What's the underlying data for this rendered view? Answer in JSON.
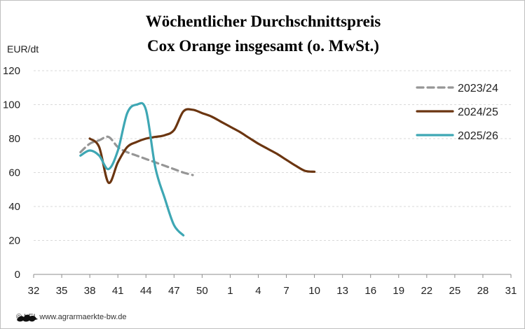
{
  "chart_data": {
    "type": "line",
    "title": "Wöchentlicher Durchschnittspreis",
    "subtitle": "Cox Orange  insgesamt (o. MwSt.)",
    "ylabel": "EUR/dt",
    "ylim": [
      0,
      120
    ],
    "yticks": [
      0,
      20,
      40,
      60,
      80,
      100,
      120
    ],
    "x_ticks": [
      "32",
      "35",
      "38",
      "41",
      "44",
      "47",
      "50",
      "1",
      "4",
      "7",
      "10",
      "13",
      "16",
      "19",
      "22",
      "25",
      "28",
      "31"
    ],
    "grid": true,
    "legend_position": "top-right",
    "series": [
      {
        "name": "2023/24",
        "color": "#969696",
        "style": "dashed",
        "x": [
          "37",
          "38",
          "39",
          "40",
          "41",
          "42",
          "43",
          "44",
          "45",
          "46",
          "47",
          "48",
          "49"
        ],
        "values": [
          72,
          77,
          79,
          81,
          75,
          72,
          70,
          68,
          66,
          64,
          62,
          60,
          58.5
        ]
      },
      {
        "name": "2024/25",
        "color": "#6b3510",
        "style": "solid",
        "x": [
          "38",
          "39",
          "40",
          "41",
          "42",
          "43",
          "44",
          "45",
          "46",
          "47",
          "48",
          "49",
          "50",
          "51",
          "52",
          "1",
          "2",
          "3",
          "4",
          "5",
          "6",
          "7",
          "8",
          "9",
          "10"
        ],
        "values": [
          80,
          75,
          54,
          66,
          75,
          78,
          80,
          81,
          82,
          85,
          96,
          97,
          95,
          93,
          90,
          87,
          84,
          80.5,
          77,
          74,
          71,
          67.5,
          64,
          61,
          60.5
        ]
      },
      {
        "name": "2025/26",
        "color": "#3ea7b4",
        "style": "solid",
        "x": [
          "37",
          "38",
          "39",
          "40",
          "41",
          "42",
          "43",
          "44",
          "45",
          "46",
          "47",
          "48"
        ],
        "values": [
          70,
          73,
          70,
          62,
          73,
          95,
          100,
          97,
          63,
          45,
          29,
          23
        ]
      }
    ]
  },
  "footer": {
    "credit": "© LEL www.agrarmaerkte-bw.de",
    "logo": "baden-wuerttemberg-lion-logo"
  }
}
